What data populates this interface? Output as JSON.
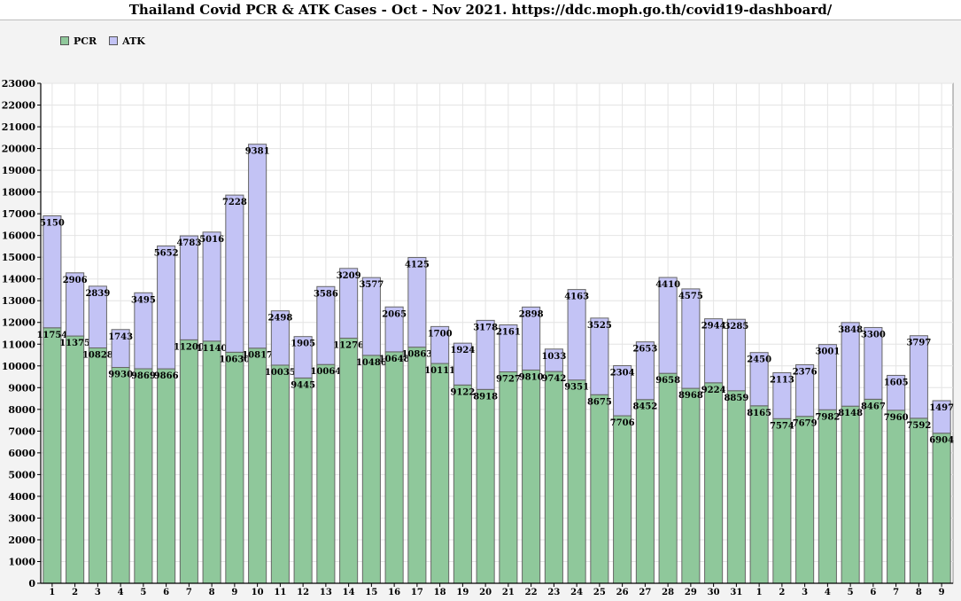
{
  "title": "Thailand Covid PCR & ATK Cases - Oct - Nov 2021. https://ddc.moph.go.th/covid19-dashboard/",
  "colors": {
    "pcr": "#8fc89b",
    "atk": "#c3c3f5"
  },
  "chart_data": {
    "type": "bar",
    "stacked": true,
    "title": "Thailand Covid PCR & ATK Cases - Oct - Nov 2021. https://ddc.moph.go.th/covid19-dashboard/",
    "xlabel": "",
    "ylabel": "",
    "ylim": [
      0,
      23000
    ],
    "ytick_step": 1000,
    "grid": true,
    "legend_position": "top-left",
    "categories": [
      "1",
      "2",
      "3",
      "4",
      "5",
      "6",
      "7",
      "8",
      "9",
      "10",
      "11",
      "12",
      "13",
      "14",
      "15",
      "16",
      "17",
      "18",
      "19",
      "20",
      "21",
      "22",
      "23",
      "24",
      "25",
      "26",
      "27",
      "28",
      "29",
      "30",
      "31",
      "1",
      "2",
      "3",
      "4",
      "5",
      "6",
      "7",
      "8",
      "9"
    ],
    "series": [
      {
        "name": "PCR",
        "values": [
          11754,
          11375,
          10828,
          9930,
          9869,
          9866,
          11200,
          11140,
          10630,
          10817,
          10035,
          9445,
          10064,
          11276,
          10486,
          10648,
          10863,
          10111,
          9122,
          8918,
          9727,
          9810,
          9742,
          9351,
          8675,
          7706,
          8452,
          9658,
          8968,
          9224,
          8859,
          8165,
          7574,
          7679,
          7982,
          8148,
          8467,
          7960,
          7592,
          6904
        ]
      },
      {
        "name": "ATK",
        "values": [
          5150,
          2906,
          2839,
          1743,
          3495,
          5652,
          4783,
          5016,
          7228,
          9381,
          2498,
          1905,
          3586,
          3209,
          3577,
          2065,
          4125,
          1700,
          1924,
          3178,
          2161,
          2898,
          1033,
          4163,
          3525,
          2304,
          2653,
          4410,
          4575,
          2944,
          3285,
          2450,
          2113,
          2376,
          3001,
          3848,
          3300,
          1605,
          3797,
          1497
        ]
      }
    ]
  }
}
